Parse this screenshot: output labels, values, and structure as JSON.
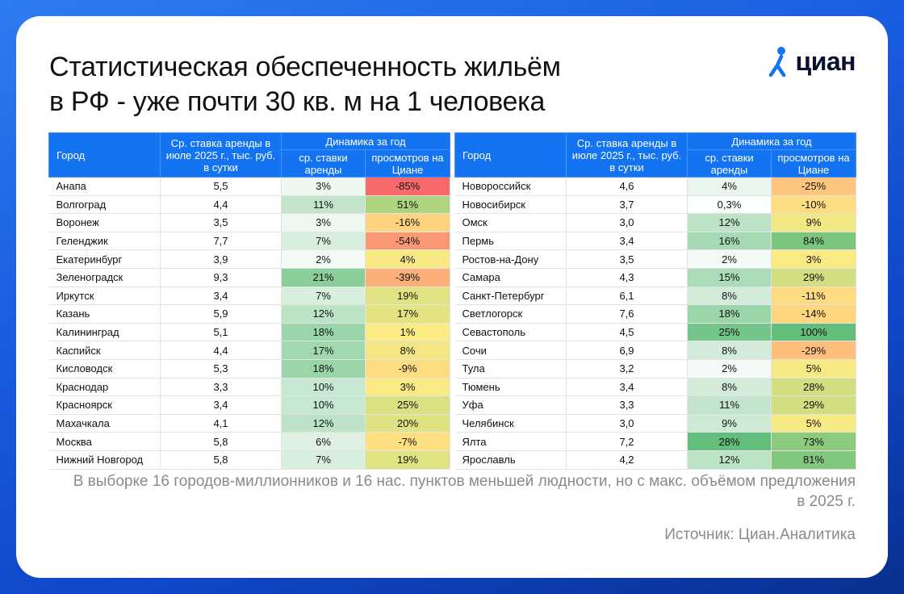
{
  "title": {
    "line1": "Статистическая обеспеченность жильём",
    "line2": "в РФ  - уже почти 30 кв. м на 1 человека"
  },
  "logo": {
    "text": "циан",
    "icon": "cian-pin-icon"
  },
  "table_headers": {
    "city": "Город",
    "rate": "Ср. ставка аренды в июле 2025 г., тыс. руб. в сутки",
    "dynamics": "Динамика за год",
    "rate_change": "ср. ставки аренды",
    "views_change": "просмотров на Циане"
  },
  "colors": {
    "header_bg": "#1473f0",
    "neg_strong": "#f8696b",
    "neutral": "#ffeb84",
    "pos_strong": "#63be7b"
  },
  "left_table": [
    {
      "city": "Анапа",
      "rate": "5,5",
      "rate_change": "3%",
      "views_change": "-85%"
    },
    {
      "city": "Волгоград",
      "rate": "4,4",
      "rate_change": "11%",
      "views_change": "51%"
    },
    {
      "city": "Воронеж",
      "rate": "3,5",
      "rate_change": "3%",
      "views_change": "-16%"
    },
    {
      "city": "Геленджик",
      "rate": "7,7",
      "rate_change": "7%",
      "views_change": "-54%"
    },
    {
      "city": "Екатеринбург",
      "rate": "3,9",
      "rate_change": "2%",
      "views_change": "4%"
    },
    {
      "city": "Зеленоградск",
      "rate": "9,3",
      "rate_change": "21%",
      "views_change": "-39%"
    },
    {
      "city": "Иркутск",
      "rate": "3,4",
      "rate_change": "7%",
      "views_change": "19%"
    },
    {
      "city": "Казань",
      "rate": "5,9",
      "rate_change": "12%",
      "views_change": "17%"
    },
    {
      "city": "Калининград",
      "rate": "5,1",
      "rate_change": "18%",
      "views_change": "1%"
    },
    {
      "city": "Каспийск",
      "rate": "4,4",
      "rate_change": "17%",
      "views_change": "8%"
    },
    {
      "city": "Кисловодск",
      "rate": "5,3",
      "rate_change": "18%",
      "views_change": "-9%"
    },
    {
      "city": "Краснодар",
      "rate": "3,3",
      "rate_change": "10%",
      "views_change": "3%"
    },
    {
      "city": "Красноярск",
      "rate": "3,4",
      "rate_change": "10%",
      "views_change": "25%"
    },
    {
      "city": "Махачкала",
      "rate": "4,1",
      "rate_change": "12%",
      "views_change": "20%"
    },
    {
      "city": "Москва",
      "rate": "5,8",
      "rate_change": "6%",
      "views_change": "-7%"
    },
    {
      "city": "Нижний Новгород",
      "rate": "5,8",
      "rate_change": "7%",
      "views_change": "19%"
    }
  ],
  "right_table": [
    {
      "city": "Новороссийск",
      "rate": "4,6",
      "rate_change": "4%",
      "views_change": "-25%"
    },
    {
      "city": "Новосибирск",
      "rate": "3,7",
      "rate_change": "0,3%",
      "views_change": "-10%"
    },
    {
      "city": "Омск",
      "rate": "3,0",
      "rate_change": "12%",
      "views_change": "9%"
    },
    {
      "city": "Пермь",
      "rate": "3,4",
      "rate_change": "16%",
      "views_change": "84%"
    },
    {
      "city": "Ростов-на-Дону",
      "rate": "3,5",
      "rate_change": "2%",
      "views_change": "3%"
    },
    {
      "city": "Самара",
      "rate": "4,3",
      "rate_change": "15%",
      "views_change": "29%"
    },
    {
      "city": "Санкт-Петербург",
      "rate": "6,1",
      "rate_change": "8%",
      "views_change": "-11%"
    },
    {
      "city": "Светлогорск",
      "rate": "7,6",
      "rate_change": "18%",
      "views_change": "-14%"
    },
    {
      "city": "Севастополь",
      "rate": "4,5",
      "rate_change": "25%",
      "views_change": "100%"
    },
    {
      "city": "Сочи",
      "rate": "6,9",
      "rate_change": "8%",
      "views_change": "-29%"
    },
    {
      "city": "Тула",
      "rate": "3,2",
      "rate_change": "2%",
      "views_change": "5%"
    },
    {
      "city": "Тюмень",
      "rate": "3,4",
      "rate_change": "8%",
      "views_change": "28%"
    },
    {
      "city": "Уфа",
      "rate": "3,3",
      "rate_change": "11%",
      "views_change": "29%"
    },
    {
      "city": "Челябинск",
      "rate": "3,0",
      "rate_change": "9%",
      "views_change": "5%"
    },
    {
      "city": "Ялта",
      "rate": "7,2",
      "rate_change": "28%",
      "views_change": "73%"
    },
    {
      "city": "Ярославль",
      "rate": "4,2",
      "rate_change": "12%",
      "views_change": "81%"
    }
  ],
  "note": "В выборке 16 городов-миллионников и 16 нас. пунктов меньшей людности, но с макс. объёмом предложения в 2025 г.",
  "source": "Источник: Циан.Аналитика"
}
